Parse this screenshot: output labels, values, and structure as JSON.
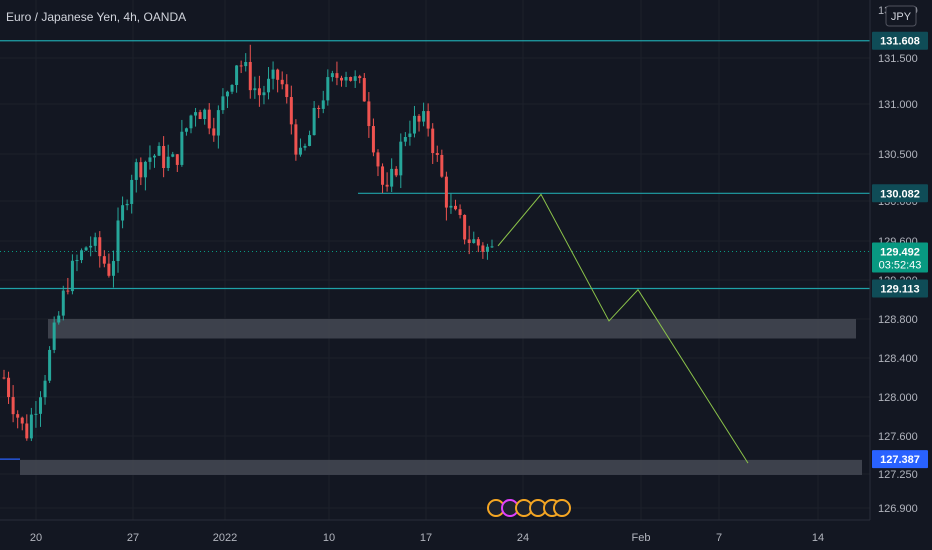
{
  "chart_data": {
    "type": "candlestick",
    "title": "Euro / Japanese Yen, 4h, OANDA",
    "currency": "JPY",
    "y_ticks": [
      131.5,
      131.0,
      130.5,
      130.0,
      129.6,
      129.2,
      128.8,
      128.4,
      128.0,
      127.6,
      127.25,
      126.9
    ],
    "y_tick_labels": [
      "131.500",
      "131.000",
      "130.500",
      "130.000",
      "129.600",
      "129.200",
      "128.800",
      "128.400",
      "128.000",
      "127.600",
      "127.250",
      "126.900"
    ],
    "y_top_label": "131.800",
    "x_ticks": [
      "20",
      "27",
      "2022",
      "10",
      "17",
      "24",
      "Feb",
      "7",
      "14"
    ],
    "levels": {
      "resistance": "131.608",
      "mid": "130.082",
      "support": "129.113",
      "low": "127.387"
    },
    "current_price": "129.492",
    "countdown": "03:52:43",
    "zones": [
      {
        "from": 128.6,
        "to": 128.8
      },
      {
        "from": 127.24,
        "to": 127.38
      }
    ],
    "projection": [
      129.55,
      130.07,
      128.78,
      129.1,
      127.35
    ],
    "candle_trend": [
      128.2,
      127.6,
      128.3,
      129.2,
      129.6,
      129.3,
      130.3,
      130.5,
      130.4,
      131.0,
      130.8,
      131.5,
      131.1,
      131.3,
      130.4,
      131.1,
      131.4,
      131.1,
      130.0,
      130.8,
      130.8,
      129.9,
      129.6,
      129.5
    ],
    "colors": {
      "background": "#131722",
      "bull": "#26a69a",
      "bear": "#ef5350",
      "level": "#1fa2a8",
      "zone": "#434651",
      "projection": "#8bc34a",
      "text": "#b2b5be",
      "current_badge": "#089981",
      "low_badge": "#2962ff"
    }
  }
}
